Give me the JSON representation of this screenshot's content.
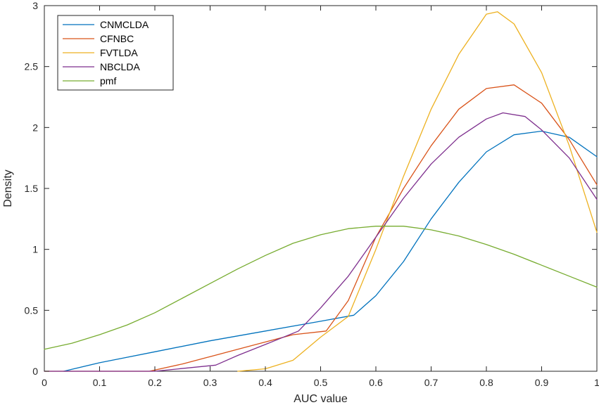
{
  "chart_data": {
    "type": "line",
    "title": "",
    "xlabel": "AUC value",
    "ylabel": "Density",
    "xlim": [
      0,
      1
    ],
    "ylim": [
      0,
      3
    ],
    "xticks": [
      0,
      0.1,
      0.2,
      0.3,
      0.4,
      0.5,
      0.6,
      0.7,
      0.8,
      0.9,
      1
    ],
    "yticks": [
      0,
      0.5,
      1,
      1.5,
      2,
      2.5,
      3
    ],
    "xtick_labels": [
      "0",
      "0.1",
      "0.2",
      "0.3",
      "0.4",
      "0.5",
      "0.6",
      "0.7",
      "0.8",
      "0.9",
      "1"
    ],
    "ytick_labels": [
      "0",
      "0.5",
      "1",
      "1.5",
      "2",
      "2.5",
      "3"
    ],
    "grid": false,
    "legend_position": "top-left",
    "series": [
      {
        "name": "CNMCLDA",
        "color": "#0072BD",
        "points": [
          [
            0.035,
            0
          ],
          [
            0.1,
            0.07
          ],
          [
            0.2,
            0.16
          ],
          [
            0.3,
            0.25
          ],
          [
            0.4,
            0.33
          ],
          [
            0.5,
            0.41
          ],
          [
            0.56,
            0.46
          ],
          [
            0.6,
            0.62
          ],
          [
            0.65,
            0.9
          ],
          [
            0.7,
            1.25
          ],
          [
            0.75,
            1.55
          ],
          [
            0.8,
            1.8
          ],
          [
            0.85,
            1.94
          ],
          [
            0.9,
            1.97
          ],
          [
            0.95,
            1.92
          ],
          [
            1.0,
            1.76
          ]
        ]
      },
      {
        "name": "CFNBC",
        "color": "#D95319",
        "points": [
          [
            0,
            0
          ],
          [
            0.19,
            0
          ],
          [
            0.25,
            0.06
          ],
          [
            0.3,
            0.12
          ],
          [
            0.35,
            0.18
          ],
          [
            0.4,
            0.24
          ],
          [
            0.45,
            0.3
          ],
          [
            0.51,
            0.33
          ],
          [
            0.55,
            0.58
          ],
          [
            0.6,
            1.1
          ],
          [
            0.65,
            1.5
          ],
          [
            0.7,
            1.85
          ],
          [
            0.75,
            2.15
          ],
          [
            0.8,
            2.32
          ],
          [
            0.85,
            2.35
          ],
          [
            0.9,
            2.2
          ],
          [
            0.95,
            1.9
          ],
          [
            1.0,
            1.53
          ]
        ]
      },
      {
        "name": "FVTLDA",
        "color": "#EDB120",
        "points": [
          [
            0.35,
            0
          ],
          [
            0.4,
            0.02
          ],
          [
            0.45,
            0.09
          ],
          [
            0.5,
            0.28
          ],
          [
            0.55,
            0.45
          ],
          [
            0.6,
            1.0
          ],
          [
            0.65,
            1.6
          ],
          [
            0.7,
            2.15
          ],
          [
            0.75,
            2.6
          ],
          [
            0.8,
            2.93
          ],
          [
            0.82,
            2.95
          ],
          [
            0.85,
            2.85
          ],
          [
            0.9,
            2.45
          ],
          [
            0.95,
            1.85
          ],
          [
            1.0,
            1.14
          ]
        ]
      },
      {
        "name": "NBCLDA",
        "color": "#7E2F8E",
        "points": [
          [
            0,
            0
          ],
          [
            0.2,
            0
          ],
          [
            0.31,
            0.05
          ],
          [
            0.35,
            0.13
          ],
          [
            0.4,
            0.22
          ],
          [
            0.46,
            0.33
          ],
          [
            0.5,
            0.52
          ],
          [
            0.55,
            0.78
          ],
          [
            0.6,
            1.1
          ],
          [
            0.65,
            1.42
          ],
          [
            0.7,
            1.7
          ],
          [
            0.75,
            1.92
          ],
          [
            0.8,
            2.07
          ],
          [
            0.83,
            2.12
          ],
          [
            0.87,
            2.09
          ],
          [
            0.9,
            1.98
          ],
          [
            0.95,
            1.75
          ],
          [
            1.0,
            1.41
          ]
        ]
      },
      {
        "name": "pmf",
        "color": "#77AC30",
        "points": [
          [
            0,
            0.18
          ],
          [
            0.05,
            0.23
          ],
          [
            0.1,
            0.3
          ],
          [
            0.15,
            0.38
          ],
          [
            0.2,
            0.48
          ],
          [
            0.25,
            0.6
          ],
          [
            0.3,
            0.72
          ],
          [
            0.35,
            0.84
          ],
          [
            0.4,
            0.95
          ],
          [
            0.45,
            1.05
          ],
          [
            0.5,
            1.12
          ],
          [
            0.55,
            1.17
          ],
          [
            0.6,
            1.19
          ],
          [
            0.65,
            1.19
          ],
          [
            0.7,
            1.16
          ],
          [
            0.75,
            1.11
          ],
          [
            0.8,
            1.04
          ],
          [
            0.85,
            0.96
          ],
          [
            0.9,
            0.87
          ],
          [
            0.95,
            0.78
          ],
          [
            1.0,
            0.69
          ]
        ]
      }
    ]
  }
}
